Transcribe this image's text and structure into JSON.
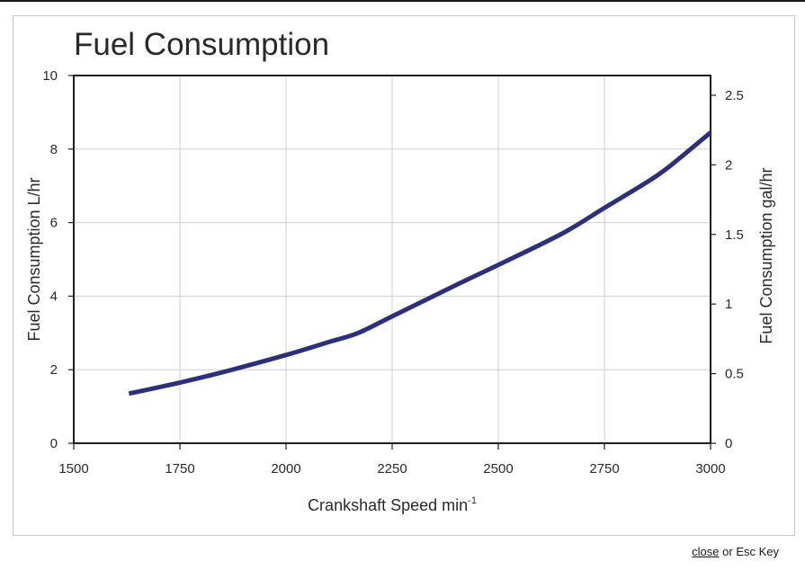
{
  "chart_data": {
    "type": "line",
    "title": "Fuel Consumption",
    "xlabel": "Crankshaft Speed min",
    "xlabel_sup": "-1",
    "ylabel": "Fuel Consumption L/hr",
    "y2label": "Fuel Consumption gal/hr",
    "xlim": [
      1500,
      3000
    ],
    "ylim": [
      0,
      10
    ],
    "y2lim": [
      0,
      2.642
    ],
    "xticks": [
      1500,
      1750,
      2000,
      2250,
      2500,
      2750,
      3000
    ],
    "yticks": [
      0,
      2,
      4,
      6,
      8,
      10
    ],
    "y2ticks": [
      0,
      0.5,
      1,
      1.5,
      2,
      2.5
    ],
    "grid": true,
    "series": [
      {
        "color": "#2b2f7e",
        "x": [
          1630,
          1750,
          1850,
          2000,
          2100,
          2170,
          2250,
          2400,
          2500,
          2650,
          2750,
          2850,
          2900,
          3000
        ],
        "y": [
          1.35,
          1.65,
          1.93,
          2.4,
          2.75,
          3.0,
          3.45,
          4.3,
          4.85,
          5.7,
          6.4,
          7.1,
          7.5,
          8.45
        ]
      }
    ]
  },
  "footer": {
    "close_label": "close",
    "rest_label": " or Esc Key"
  }
}
